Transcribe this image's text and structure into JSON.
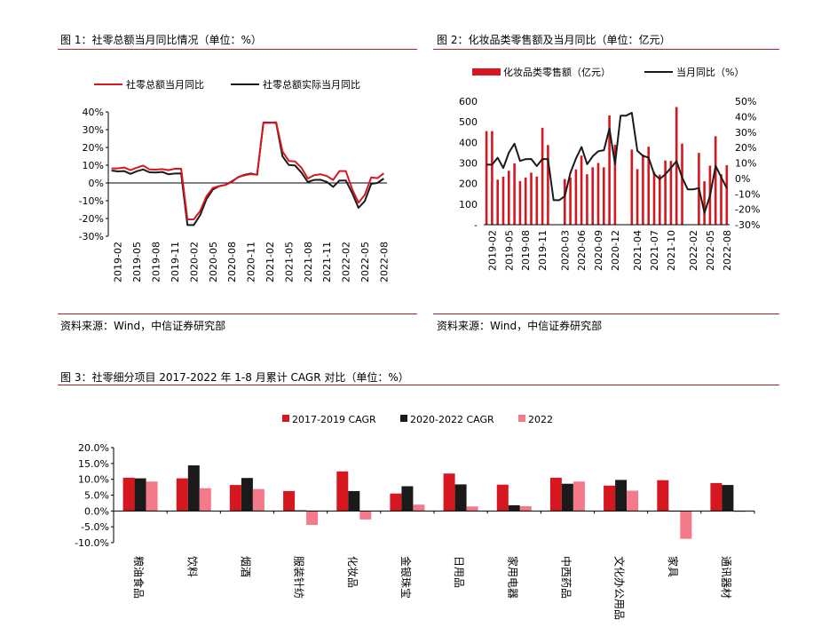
{
  "source_label": "资料来源：Wind，中信证券研究部",
  "colors": {
    "red": "#d7171f",
    "black": "#1a1a1a",
    "pink": "#f47a8a",
    "rule": "#a8232b"
  },
  "chart_data": [
    {
      "id": "fig1",
      "type": "line",
      "title": "图 1：社零总额当月同比情况（单位：%）",
      "categories": [
        "2019-01",
        "2019-02",
        "2019-03",
        "2019-04",
        "2019-05",
        "2019-06",
        "2019-07",
        "2019-08",
        "2019-09",
        "2019-10",
        "2019-11",
        "2019-12",
        "2020-01",
        "2020-02",
        "2020-03",
        "2020-04",
        "2020-05",
        "2020-06",
        "2020-07",
        "2020-08",
        "2020-09",
        "2020-10",
        "2020-11",
        "2020-12",
        "2021-01",
        "2021-02",
        "2021-03",
        "2021-04",
        "2021-05",
        "2021-06",
        "2021-07",
        "2021-08",
        "2021-09",
        "2021-10",
        "2021-11",
        "2021-12",
        "2022-01",
        "2022-02",
        "2022-03",
        "2022-04",
        "2022-05",
        "2022-06",
        "2022-07",
        "2022-08"
      ],
      "tick_labels": [
        "2019-02",
        "2019-05",
        "2019-08",
        "2019-11",
        "2020-02",
        "2020-05",
        "2020-08",
        "2020-11",
        "2021-02",
        "2021-05",
        "2021-08",
        "2021-11",
        "2022-02",
        "2022-05",
        "2022-08"
      ],
      "ylim": [
        -30,
        40
      ],
      "yticks": [
        -30,
        -20,
        -10,
        0,
        10,
        20,
        30,
        40
      ],
      "ytick_labels": [
        "-30%",
        "-20%",
        "-10%",
        "0%",
        "10%",
        "20%",
        "30%",
        "40%"
      ],
      "series": [
        {
          "name": "社零总额当月同比",
          "color": "#d7171f",
          "values": [
            8.2,
            8.2,
            8.7,
            7.2,
            8.6,
            9.8,
            7.6,
            7.5,
            7.8,
            7.2,
            8.0,
            8.0,
            -20.5,
            -20.5,
            -15.8,
            -7.5,
            -2.8,
            -1.8,
            -1.1,
            0.5,
            3.3,
            4.3,
            5.0,
            4.6,
            33.8,
            33.8,
            34.2,
            17.7,
            12.4,
            12.1,
            8.5,
            2.5,
            4.4,
            4.9,
            3.9,
            1.7,
            6.7,
            6.7,
            -3.5,
            -11.1,
            -6.7,
            3.1,
            2.7,
            5.4
          ]
        },
        {
          "name": "社零总额实际当月同比",
          "color": "#1a1a1a",
          "values": [
            7.0,
            6.5,
            6.7,
            5.1,
            6.6,
            7.6,
            6.0,
            5.9,
            6.2,
            4.9,
            5.3,
            5.4,
            -23.7,
            -23.7,
            -18.1,
            -9.1,
            -3.7,
            -1.8,
            -1.1,
            0.9,
            3.2,
            4.6,
            5.3,
            4.6,
            34.0,
            34.0,
            33.8,
            15.0,
            10.1,
            9.8,
            5.8,
            0.5,
            1.7,
            1.8,
            0.6,
            -2.2,
            1.4,
            1.4,
            -5.7,
            -14.0,
            -10.2,
            -0.5,
            0.0,
            2.5
          ]
        }
      ]
    },
    {
      "id": "fig2",
      "type": "bar+line",
      "title": "图 2：化妆品类零售额及当月同比（单位：亿元）",
      "categories": [
        "2019-01",
        "2019-02",
        "2019-03",
        "2019-04",
        "2019-05",
        "2019-06",
        "2019-07",
        "2019-08",
        "2019-09",
        "2019-10",
        "2019-11",
        "2019-12",
        "2020-01",
        "2020-02",
        "2020-03",
        "2020-04",
        "2020-05",
        "2020-06",
        "2020-07",
        "2020-08",
        "2020-09",
        "2020-10",
        "2020-11",
        "2020-12",
        "2021-01",
        "2021-02",
        "2021-03",
        "2021-04",
        "2021-05",
        "2021-06",
        "2021-07",
        "2021-08",
        "2021-09",
        "2021-10",
        "2021-11",
        "2021-12",
        "2022-01",
        "2022-02",
        "2022-03",
        "2022-04",
        "2022-05",
        "2022-06",
        "2022-07",
        "2022-08"
      ],
      "tick_labels": [
        "2019-02",
        "2019-05",
        "2019-08",
        "2019-11",
        "2020-03",
        "2020-06",
        "2020-09",
        "2020-12",
        "2021-04",
        "2021-07",
        "2021-10",
        "2022-02",
        "2022-05",
        "2022-08"
      ],
      "ylim_left": [
        0,
        600
      ],
      "yticks_left": [
        0,
        100,
        200,
        300,
        400,
        500,
        600
      ],
      "ytick_labels_left": [
        "-",
        "100",
        "200",
        "300",
        "400",
        "500",
        "600"
      ],
      "ylim_right": [
        -30,
        50
      ],
      "yticks_right": [
        -30,
        -20,
        -10,
        0,
        10,
        20,
        30,
        40,
        50
      ],
      "ytick_labels_right": [
        "-30%",
        "-20%",
        "-10%",
        "0%",
        "10%",
        "20%",
        "30%",
        "40%",
        "50%"
      ],
      "series": [
        {
          "name": "化妆品类零售额（亿元）",
          "type": "bar",
          "axis": "left",
          "color": "#d7171f",
          "values": [
            455,
            455,
            219,
            233,
            262,
            298,
            212,
            229,
            253,
            234,
            471,
            387,
            0,
            0,
            222,
            230,
            269,
            336,
            245,
            279,
            300,
            279,
            531,
            388,
            0,
            0,
            365,
            270,
            341,
            379,
            256,
            243,
            312,
            310,
            572,
            394,
            0,
            0,
            349,
            211,
            287,
            430,
            245,
            289
          ]
        },
        {
          "name": "当月同比（%）",
          "type": "line",
          "axis": "right",
          "color": "#1a1a1a",
          "values": [
            8.9,
            8.9,
            13.4,
            6.7,
            16.7,
            22.5,
            11.3,
            12.5,
            12.6,
            8.0,
            12.6,
            12.4,
            -14.1,
            -14.1,
            -11.6,
            3.5,
            12.9,
            20.3,
            9.2,
            14.4,
            17.6,
            18.3,
            32.3,
            9.3,
            40.7,
            40.7,
            42.5,
            17.8,
            14.6,
            13.5,
            2.8,
            -0.4,
            2.7,
            6.8,
            11.2,
            0.6,
            -7.1,
            -7.1,
            -6.3,
            -22.3,
            -11.0,
            8.1,
            0.7,
            -6.4
          ]
        }
      ]
    },
    {
      "id": "fig3",
      "type": "bar",
      "title": "图 3：社零细分项目 2017-2022 年 1-8 月累计 CAGR 对比（单位：%）",
      "categories": [
        "粮油食品",
        "饮料",
        "烟酒",
        "服装针纺",
        "化妆品",
        "金银珠宝",
        "日用品",
        "家用电器",
        "中西药品",
        "文化办公用品",
        "家具",
        "通讯器材"
      ],
      "ylim": [
        -10,
        20
      ],
      "yticks": [
        -10,
        -5,
        0,
        5,
        10,
        15,
        20
      ],
      "ytick_labels": [
        "-10.0%",
        "-5.0%",
        "0.0%",
        "5.0%",
        "10.0%",
        "15.0%",
        "20.0%"
      ],
      "series": [
        {
          "name": "2017-2019 CAGR",
          "color": "#d7171f",
          "values": [
            10.5,
            10.3,
            8.2,
            6.3,
            12.5,
            5.5,
            11.8,
            8.3,
            10.5,
            8.0,
            9.7,
            8.8
          ]
        },
        {
          "name": "2020-2022 CAGR",
          "color": "#1a1a1a",
          "values": [
            10.3,
            14.4,
            10.4,
            0.2,
            6.3,
            7.8,
            8.4,
            1.8,
            8.6,
            9.8,
            -0.1,
            8.2
          ]
        },
        {
          "name": "2022",
          "color": "#f47a8a",
          "values": [
            9.3,
            7.2,
            6.9,
            -4.4,
            -2.7,
            2.0,
            1.4,
            1.5,
            9.3,
            6.4,
            -8.8,
            -0.3
          ]
        }
      ]
    }
  ]
}
